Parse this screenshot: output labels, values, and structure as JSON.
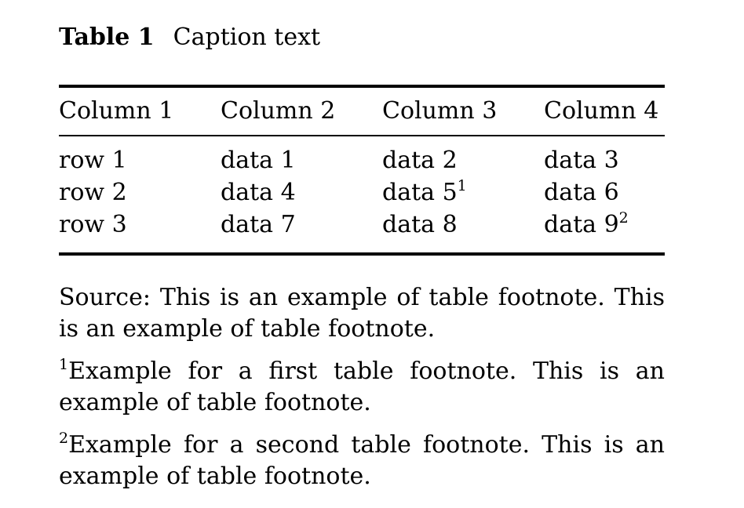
{
  "caption": {
    "label": "Table 1",
    "text": "Caption text"
  },
  "table": {
    "headers": [
      "Column 1",
      "Column 2",
      "Column 3",
      "Column 4"
    ],
    "rows": [
      {
        "c1": "row 1",
        "c2": "data 1",
        "c3": "data 2",
        "c3_sup": "",
        "c4": "data 3",
        "c4_sup": ""
      },
      {
        "c1": "row 2",
        "c2": "data 4",
        "c3": "data 5",
        "c3_sup": "1",
        "c4": "data 6",
        "c4_sup": ""
      },
      {
        "c1": "row 3",
        "c2": "data 7",
        "c3": "data 8",
        "c3_sup": "",
        "c4": "data 9",
        "c4_sup": "2"
      }
    ]
  },
  "footnotes": {
    "source": "Source: This is an example of table footnote. This is an example of table footnote.",
    "notes": [
      {
        "mark": "1",
        "text": "Example for a first table footnote. This is an example of table footnote."
      },
      {
        "mark": "2",
        "text": "Example for a second table footnote. This is an example of table footnote."
      }
    ]
  }
}
